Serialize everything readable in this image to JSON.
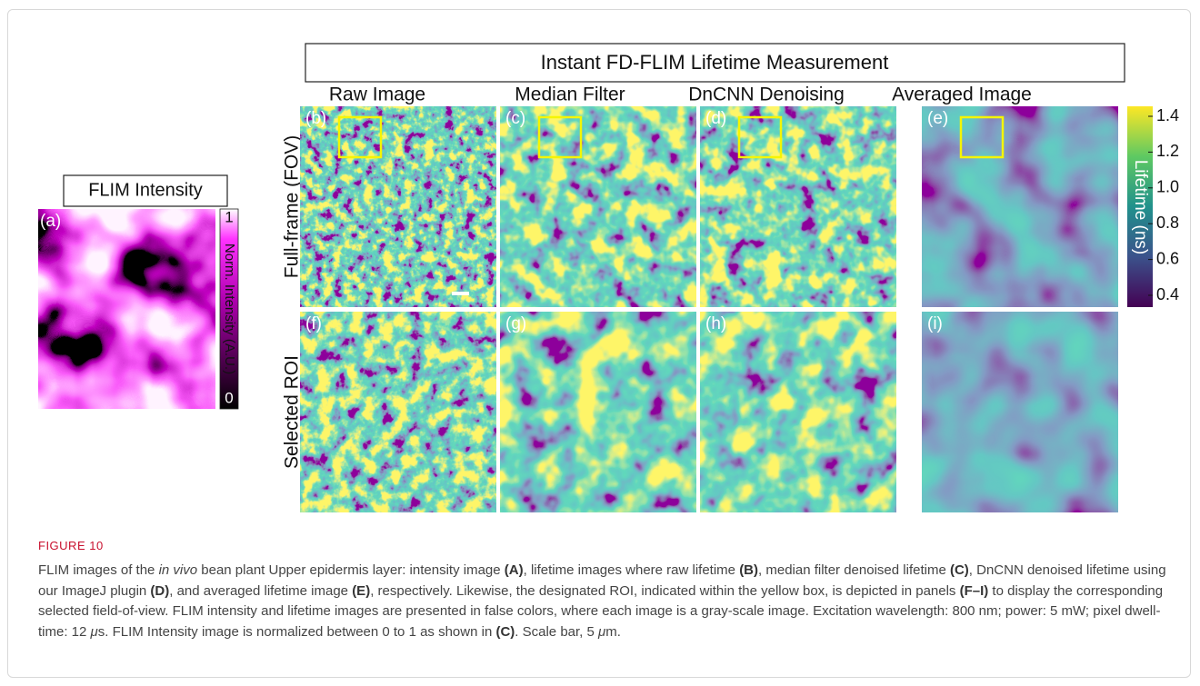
{
  "figure": {
    "label": "FIGURE 10",
    "title_box": "Instant FD-FLIM Lifetime Measurement",
    "intensity_panel": {
      "title": "FLIM Intensity",
      "panel_label": "(a)",
      "colorbar_title": "Norm. Intensity (A.U.)",
      "colorbar_max": "1",
      "colorbar_min": "0"
    },
    "columns": [
      "Raw Image",
      "Median Filter",
      "DnCNN Denoising",
      "Averaged Image"
    ],
    "rows": [
      "Full-frame (FOV)",
      "Selected ROI"
    ],
    "panel_labels": [
      [
        "(b)",
        "(c)",
        "(d)",
        "(e)"
      ],
      [
        "(f)",
        "(g)",
        "(h)",
        "(i)"
      ]
    ],
    "lifetime_colorbar": {
      "title": "Lifetime (ns)",
      "ticks": [
        "1.4",
        "1.2",
        "1.0",
        "0.8",
        "0.6",
        "0.4"
      ]
    }
  },
  "caption": [
    {
      "text": "FLIM images of the "
    },
    {
      "text": "in vivo",
      "style": "italic"
    },
    {
      "text": " bean plant Upper epidermis layer: intensity image "
    },
    {
      "text": "(A)",
      "style": "bold"
    },
    {
      "text": ", lifetime images where raw lifetime "
    },
    {
      "text": "(B)",
      "style": "bold"
    },
    {
      "text": ", median filter denoised lifetime "
    },
    {
      "text": "(C)",
      "style": "bold"
    },
    {
      "text": ", DnCNN denoised lifetime using our ImageJ plugin "
    },
    {
      "text": "(D)",
      "style": "bold"
    },
    {
      "text": ", and averaged lifetime image "
    },
    {
      "text": "(E)",
      "style": "bold"
    },
    {
      "text": ", respectively. Likewise, the designated ROI, indicated within the yellow box, is depicted in panels "
    },
    {
      "text": "(F–I)",
      "style": "bold"
    },
    {
      "text": " to display the corresponding selected field-of-view. FLIM intensity and lifetime images are presented in false colors, where each image is a gray-scale image. Excitation wavelength: 800 nm; power: 5 mW; pixel dwell-time: 12 "
    },
    {
      "text": "μ",
      "style": "italic"
    },
    {
      "text": "s. FLIM Intensity image is normalized between 0 to 1 as shown in "
    },
    {
      "text": "(C)",
      "style": "bold"
    },
    {
      "text": ". Scale bar, 5 "
    },
    {
      "text": "μ",
      "style": "italic"
    },
    {
      "text": "m."
    }
  ]
}
